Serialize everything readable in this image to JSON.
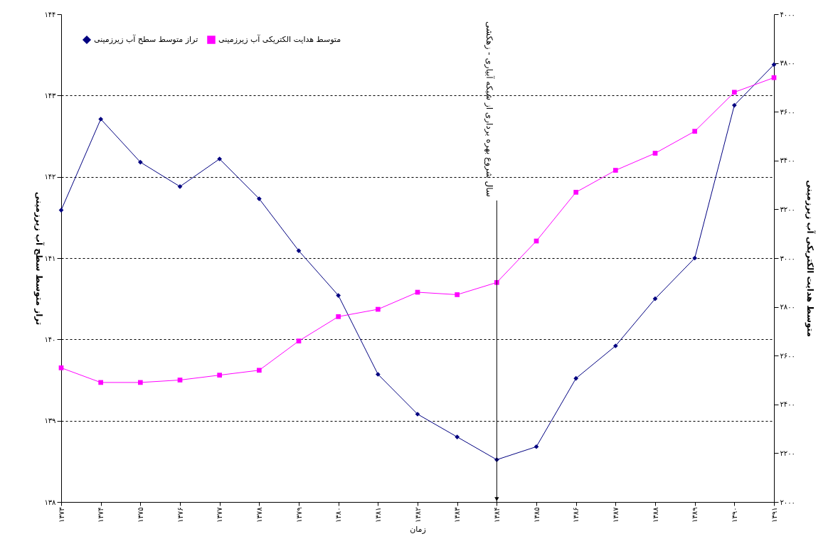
{
  "chart_data": {
    "type": "line",
    "xlabel": "زمان",
    "ylabel": "تراز متوسط سطح آب زیرزمینی",
    "y2label": "متوسط هدایت الکتریکی آب زیرزمینی",
    "categories": [
      "۱۳۷۳",
      "۱۳۷۴",
      "۱۳۷۵",
      "۱۳۷۶",
      "۱۳۷۷",
      "۱۳۷۸",
      "۱۳۷۹",
      "۱۳۸۰",
      "۱۳۸۱",
      "۱۳۸۲",
      "۱۳۸۳",
      "۱۳۸۴",
      "۱۳۸۵",
      "۱۳۸۶",
      "۱۳۸۷",
      "۱۳۸۸",
      "۱۳۸۹",
      "۱۳۹۰",
      "۱۳۹۱"
    ],
    "series": [
      {
        "name": "تراز متوسط سطح آب زیرزمینی",
        "color": "#000080",
        "marker": "diamond",
        "values": [
          141.59,
          142.71,
          142.18,
          141.88,
          142.22,
          141.73,
          141.09,
          140.54,
          139.57,
          139.08,
          138.8,
          138.52,
          138.68,
          139.52,
          139.92,
          140.5,
          141.0,
          142.88,
          143.38
        ]
      },
      {
        "name": "متوسط هدایت الکتریکی آب زیرزمینی",
        "color": "#ff00ff",
        "marker": "square",
        "axis": "y2",
        "values": [
          2550,
          2490,
          2490,
          2500,
          2520,
          2540,
          2660,
          2760,
          2790,
          2860,
          2850,
          2900,
          3070,
          3270,
          3360,
          3430,
          3520,
          3680,
          3740
        ]
      }
    ],
    "ylim": [
      138,
      144
    ],
    "yticks": [
      {
        "value": 138,
        "label": "۱۳۸"
      },
      {
        "value": 139,
        "label": "۱۳۹"
      },
      {
        "value": 140,
        "label": "۱۴۰"
      },
      {
        "value": 141,
        "label": "۱۴۱"
      },
      {
        "value": 142,
        "label": "۱۴۲"
      },
      {
        "value": 143,
        "label": "۱۴۳"
      },
      {
        "value": 144,
        "label": "۱۴۴"
      }
    ],
    "y2lim": [
      2000,
      4000
    ],
    "y2ticks": [
      {
        "value": 2000,
        "label": "۲۰۰۰"
      },
      {
        "value": 2200,
        "label": "۲۲۰۰"
      },
      {
        "value": 2400,
        "label": "۲۴۰۰"
      },
      {
        "value": 2600,
        "label": "۲۶۰۰"
      },
      {
        "value": 2800,
        "label": "۲۸۰۰"
      },
      {
        "value": 3000,
        "label": "۳۰۰۰"
      },
      {
        "value": 3200,
        "label": "۳۲۰۰"
      },
      {
        "value": 3400,
        "label": "۳۴۰۰"
      },
      {
        "value": 3600,
        "label": "۳۶۰۰"
      },
      {
        "value": 3800,
        "label": "۳۸۰۰"
      },
      {
        "value": 4000,
        "label": "۴۰۰۰"
      }
    ],
    "grid": "y",
    "legend": "top left",
    "line_style": "solid",
    "ref_lines": [
      {
        "axis": "x",
        "value": "۱۳۸۴",
        "label": "سال شروع بهره برداری از شبکه آبیاری - زهکشی",
        "color": "#000000"
      }
    ]
  }
}
